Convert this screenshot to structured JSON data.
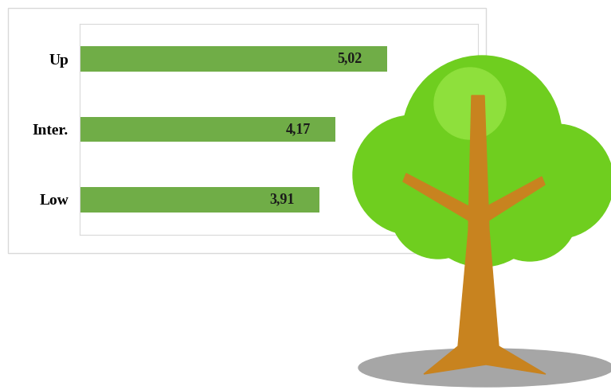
{
  "chart_data": {
    "type": "bar",
    "orientation": "horizontal",
    "categories": [
      "Up",
      "Inter.",
      "Low"
    ],
    "values": [
      5.02,
      4.17,
      3.91
    ],
    "value_labels": [
      "5,02",
      "4,17",
      "3,91"
    ],
    "data_labels": true,
    "color": "#70ad47",
    "xlim": [
      0,
      6.5
    ],
    "tick_labels": "y",
    "grid": false
  }
}
